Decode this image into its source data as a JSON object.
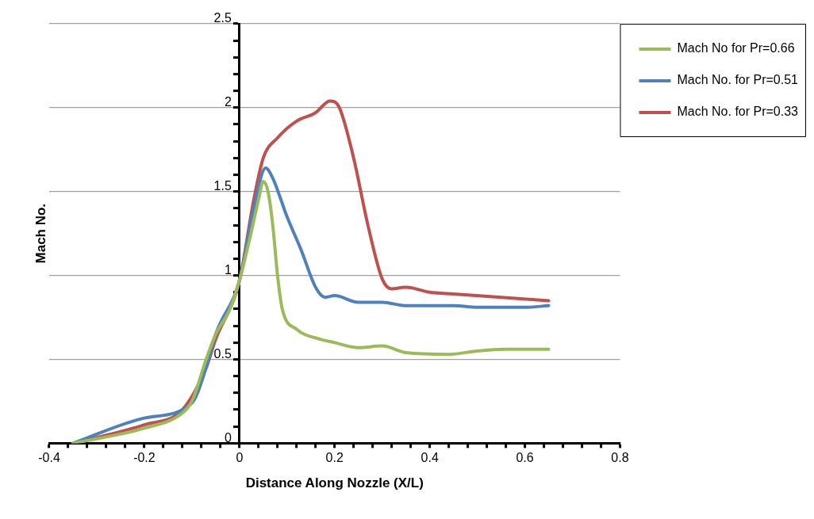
{
  "chart_data": {
    "type": "line",
    "xlabel": "Distance Along Nozzle (X/L)",
    "ylabel": "Mach No.",
    "xlim": [
      -0.4,
      0.8
    ],
    "ylim": [
      0,
      2.5
    ],
    "xticks": [
      -0.4,
      {
        "value": -0.36,
        "label": null
      },
      {
        "value": -0.32,
        "label": null
      },
      {
        "value": -0.28,
        "label": null
      },
      {
        "value": -0.24,
        "label": null
      },
      -0.2,
      {
        "value": -0.16,
        "label": null
      },
      {
        "value": -0.12,
        "label": null
      },
      {
        "value": -0.08,
        "label": null
      },
      {
        "value": -0.04,
        "label": null
      },
      0,
      {
        "value": 0.04,
        "label": null
      },
      {
        "value": 0.08,
        "label": null
      },
      {
        "value": 0.12,
        "label": null
      },
      {
        "value": 0.16,
        "label": null
      },
      0.2,
      {
        "value": 0.24,
        "label": null
      },
      {
        "value": 0.28,
        "label": null
      },
      {
        "value": 0.32,
        "label": null
      },
      {
        "value": 0.36,
        "label": null
      },
      0.4,
      {
        "value": 0.44,
        "label": null
      },
      {
        "value": 0.48,
        "label": null
      },
      {
        "value": 0.52,
        "label": null
      },
      {
        "value": 0.56,
        "label": null
      },
      0.6,
      {
        "value": 0.64,
        "label": null
      },
      {
        "value": 0.68,
        "label": null
      },
      {
        "value": 0.72,
        "label": null
      },
      {
        "value": 0.76,
        "label": null
      },
      0.8
    ],
    "yticks": [
      0,
      {
        "value": 0.1,
        "label": null
      },
      {
        "value": 0.2,
        "label": null
      },
      {
        "value": 0.3,
        "label": null
      },
      {
        "value": 0.4,
        "label": null
      },
      0.5,
      {
        "value": 0.6,
        "label": null
      },
      {
        "value": 0.7,
        "label": null
      },
      {
        "value": 0.8,
        "label": null
      },
      {
        "value": 0.9,
        "label": null
      },
      1,
      {
        "value": 1.1,
        "label": null
      },
      {
        "value": 1.2,
        "label": null
      },
      {
        "value": 1.3,
        "label": null
      },
      {
        "value": 1.4,
        "label": null
      },
      1.5,
      {
        "value": 1.6,
        "label": null
      },
      {
        "value": 1.7,
        "label": null
      },
      {
        "value": 1.8,
        "label": null
      },
      {
        "value": 1.9,
        "label": null
      },
      2,
      {
        "value": 2.1,
        "label": null
      },
      {
        "value": 2.2,
        "label": null
      },
      {
        "value": 2.3,
        "label": null
      },
      {
        "value": 2.4,
        "label": null
      },
      2.5
    ],
    "grid": "y",
    "legend": "top right",
    "marker": "none",
    "line_style": "solid",
    "series": [
      {
        "name": "Mach No for Pr=0.66",
        "color": "#9bbb59",
        "x": [
          -0.35,
          -0.2,
          -0.12,
          -0.1,
          -0.07,
          -0.05,
          -0.02,
          0,
          0.02,
          0.04,
          0.05,
          0.06,
          0.07,
          0.08,
          0.09,
          0.12,
          0.17,
          0.2,
          0.25,
          0.3,
          0.35,
          0.44,
          0.5,
          0.56,
          0.65
        ],
        "values": [
          0,
          0.09,
          0.18,
          0.25,
          0.5,
          0.65,
          0.8,
          0.97,
          1.2,
          1.45,
          1.56,
          1.5,
          1.3,
          1.0,
          0.8,
          0.68,
          0.62,
          0.6,
          0.57,
          0.58,
          0.54,
          0.53,
          0.55,
          0.56,
          0.56
        ]
      },
      {
        "name": "Mach No. for Pr=0.51",
        "color": "#4f81bd",
        "x": [
          -0.35,
          -0.2,
          -0.1,
          -0.07,
          -0.05,
          0,
          0.03,
          0.055,
          0.07,
          0.1,
          0.13,
          0.16,
          0.18,
          0.2,
          0.25,
          0.3,
          0.35,
          0.45,
          0.5,
          0.6,
          0.65
        ],
        "values": [
          0,
          0.15,
          0.24,
          0.45,
          0.65,
          0.97,
          1.4,
          1.64,
          1.58,
          1.35,
          1.15,
          0.93,
          0.87,
          0.88,
          0.84,
          0.84,
          0.82,
          0.82,
          0.81,
          0.81,
          0.82
        ]
      },
      {
        "name": "Mach No. for Pr=0.33",
        "color": "#c0504d",
        "x": [
          -0.35,
          -0.2,
          -0.12,
          -0.07,
          -0.05,
          0,
          0.03,
          0.05,
          0.08,
          0.12,
          0.16,
          0.19,
          0.21,
          0.24,
          0.27,
          0.3,
          0.32,
          0.35,
          0.4,
          0.45,
          0.55,
          0.65
        ],
        "values": [
          0,
          0.11,
          0.2,
          0.45,
          0.62,
          0.97,
          1.45,
          1.7,
          1.82,
          1.92,
          1.97,
          2.04,
          2.0,
          1.7,
          1.3,
          0.98,
          0.92,
          0.93,
          0.9,
          0.89,
          0.87,
          0.85
        ]
      }
    ]
  }
}
